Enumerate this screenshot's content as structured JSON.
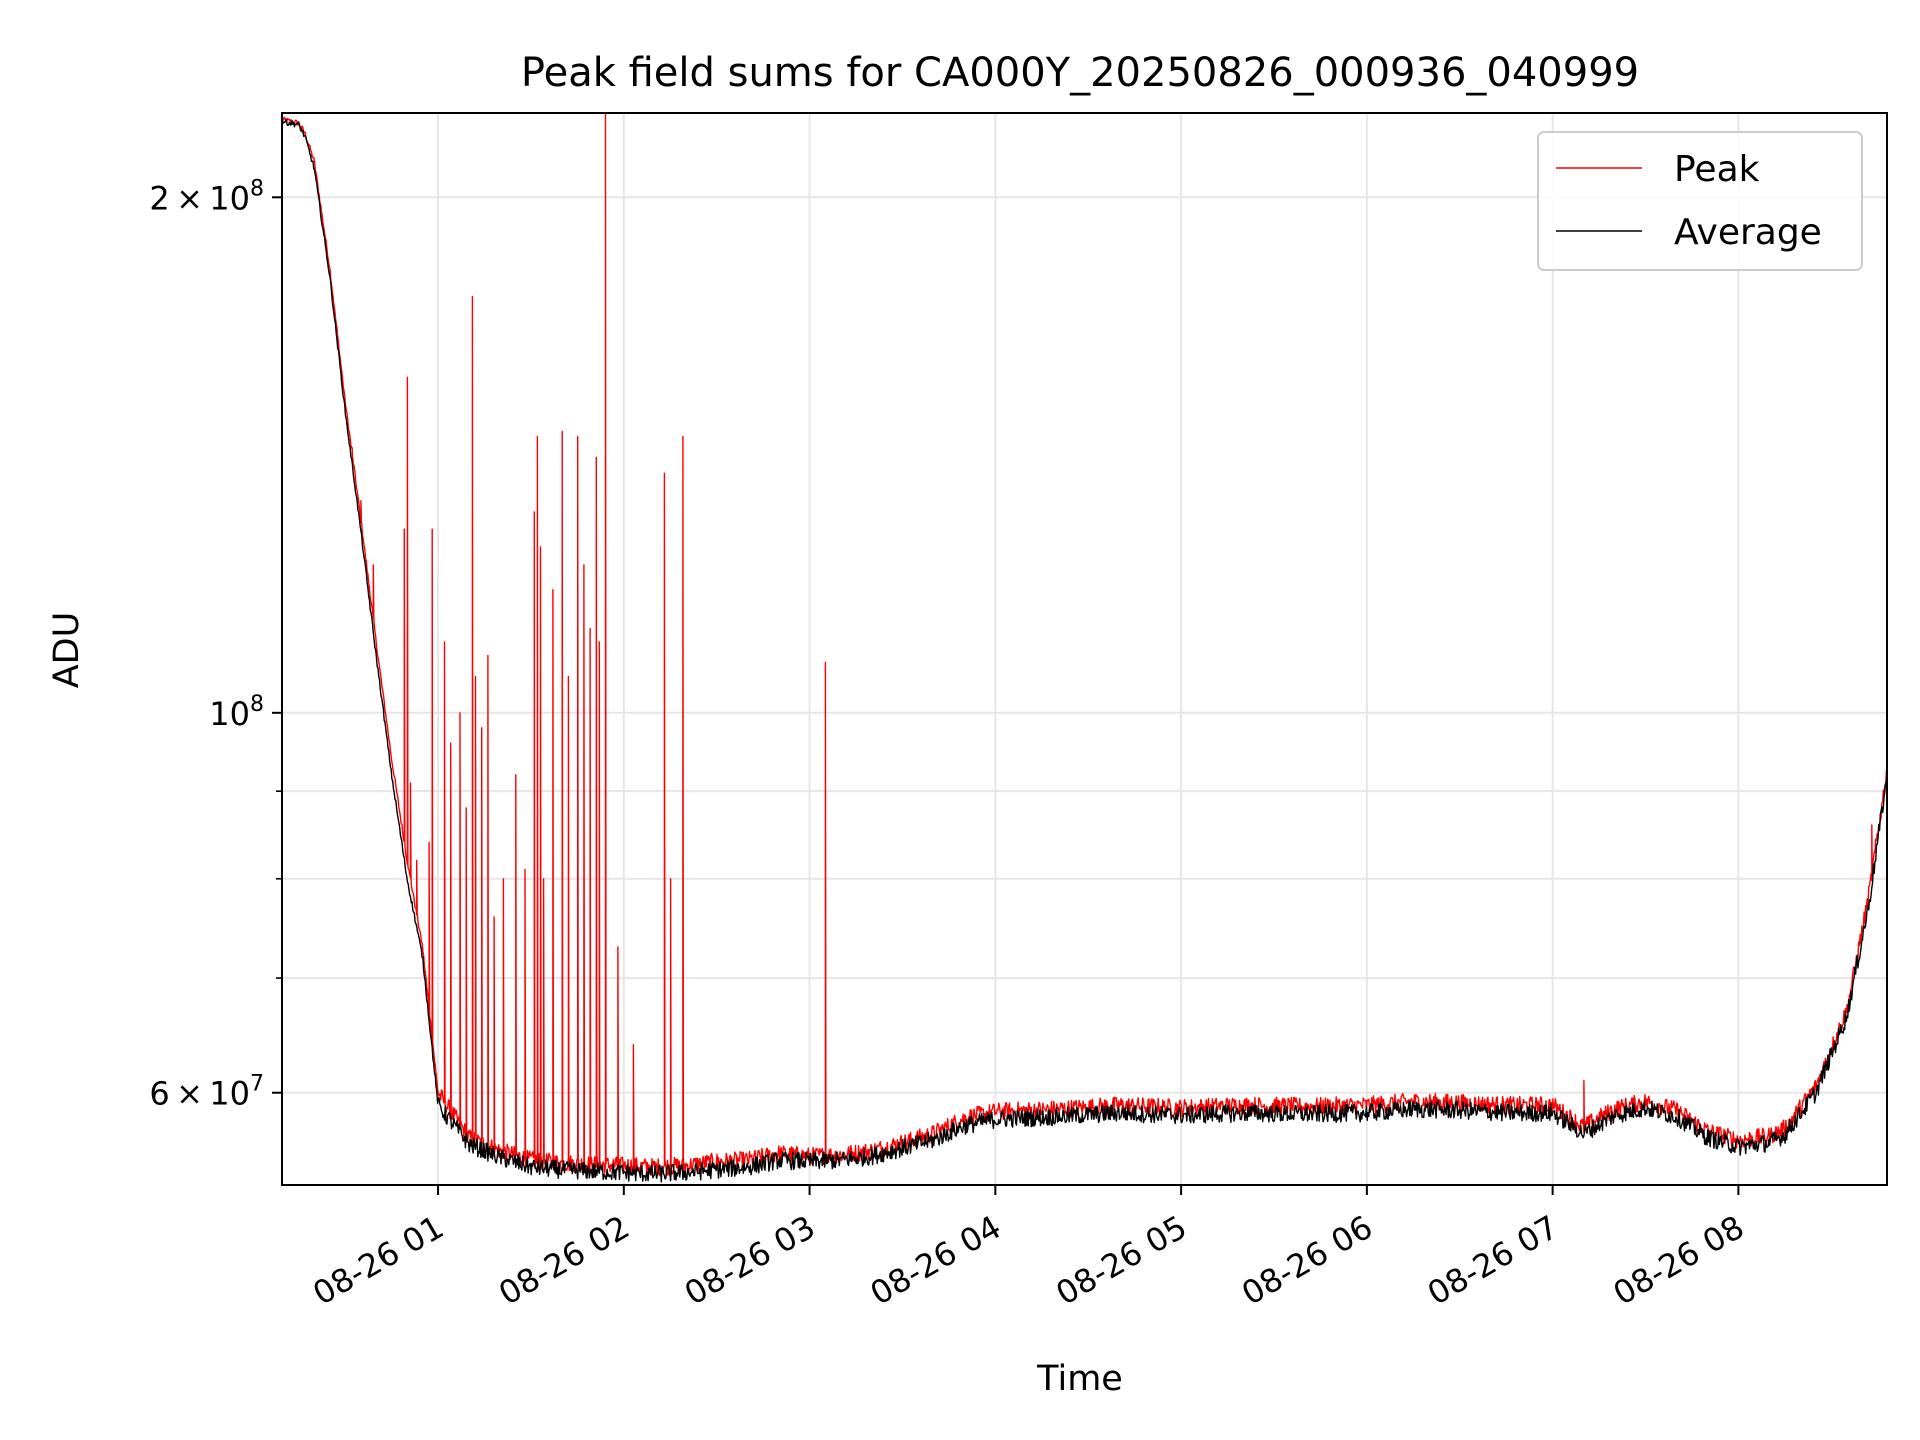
{
  "chart_data": {
    "type": "line",
    "title": "Peak field sums for CA000Y_20250826_000936_040999",
    "xlabel": "Time",
    "ylabel": "ADU",
    "x_range": [
      "2025-08-26 00:09:36",
      "2025-08-26 08:48:00"
    ],
    "ylim": [
      53000000,
      224000000
    ],
    "yscale": "log",
    "grid": true,
    "legend_position": "top-right",
    "x_ticks": [
      {
        "t": "2025-08-26 01:00",
        "label": "08-26 01"
      },
      {
        "t": "2025-08-26 02:00",
        "label": "08-26 02"
      },
      {
        "t": "2025-08-26 03:00",
        "label": "08-26 03"
      },
      {
        "t": "2025-08-26 04:00",
        "label": "08-26 04"
      },
      {
        "t": "2025-08-26 05:00",
        "label": "08-26 05"
      },
      {
        "t": "2025-08-26 06:00",
        "label": "08-26 06"
      },
      {
        "t": "2025-08-26 07:00",
        "label": "08-26 07"
      },
      {
        "t": "2025-08-26 08:00",
        "label": "08-26 08"
      }
    ],
    "y_ticks_major": [
      {
        "v": 60000000,
        "mant": "6",
        "exp": "7"
      },
      {
        "v": 100000000,
        "mant": "",
        "exp": "8"
      },
      {
        "v": 200000000,
        "mant": "2",
        "exp": "8"
      }
    ],
    "y_ticks_minor": [
      70000000,
      80000000,
      90000000
    ],
    "series": [
      {
        "name": "Peak",
        "color": "#ff0000",
        "points": [
          [
            "2025-08-26 00:09:36",
            222000000
          ],
          [
            "2025-08-26 00:15",
            221000000
          ],
          [
            "2025-08-26 00:17",
            218000000
          ],
          [
            "2025-08-26 00:20",
            210000000
          ],
          [
            "2025-08-26 00:25",
            182000000
          ],
          [
            "2025-08-26 00:30",
            152000000
          ],
          [
            "2025-08-26 00:35",
            130000000
          ],
          [
            "2025-08-26 00:40",
            110000000
          ],
          [
            "2025-08-26 00:45",
            94000000
          ],
          [
            "2025-08-26 00:50",
            82000000
          ],
          [
            "2025-08-26 00:55",
            73000000
          ],
          [
            "2025-08-26 01:00",
            60000000
          ],
          [
            "2025-08-26 01:10",
            56500000
          ],
          [
            "2025-08-26 01:20",
            55500000
          ],
          [
            "2025-08-26 01:30",
            54800000
          ],
          [
            "2025-08-26 01:40",
            54600000
          ],
          [
            "2025-08-26 01:50",
            54500000
          ],
          [
            "2025-08-26 02:00",
            54400000
          ],
          [
            "2025-08-26 02:10",
            54300000
          ],
          [
            "2025-08-26 02:20",
            54400000
          ],
          [
            "2025-08-26 02:30",
            54700000
          ],
          [
            "2025-08-26 02:40",
            54800000
          ],
          [
            "2025-08-26 02:50",
            55300000
          ],
          [
            "2025-08-26 03:00",
            55100000
          ],
          [
            "2025-08-26 03:10",
            55200000
          ],
          [
            "2025-08-26 03:20",
            55500000
          ],
          [
            "2025-08-26 03:30",
            56100000
          ],
          [
            "2025-08-26 03:40",
            56800000
          ],
          [
            "2025-08-26 03:50",
            58000000
          ],
          [
            "2025-08-26 04:00",
            58500000
          ],
          [
            "2025-08-26 04:20",
            58700000
          ],
          [
            "2025-08-26 04:40",
            59000000
          ],
          [
            "2025-08-26 05:00",
            58800000
          ],
          [
            "2025-08-26 05:20",
            59000000
          ],
          [
            "2025-08-26 05:40",
            58900000
          ],
          [
            "2025-08-26 06:00",
            59000000
          ],
          [
            "2025-08-26 06:15",
            59300000
          ],
          [
            "2025-08-26 06:30",
            59200000
          ],
          [
            "2025-08-26 06:45",
            59000000
          ],
          [
            "2025-08-26 07:00",
            59000000
          ],
          [
            "2025-08-26 07:10",
            57300000
          ],
          [
            "2025-08-26 07:20",
            58700000
          ],
          [
            "2025-08-26 07:30",
            59300000
          ],
          [
            "2025-08-26 07:40",
            58600000
          ],
          [
            "2025-08-26 07:50",
            57000000
          ],
          [
            "2025-08-26 08:00",
            56300000
          ],
          [
            "2025-08-26 08:10",
            56600000
          ],
          [
            "2025-08-26 08:15",
            57200000
          ],
          [
            "2025-08-26 08:25",
            60500000
          ],
          [
            "2025-08-26 08:35",
            67000000
          ],
          [
            "2025-08-26 08:42",
            78000000
          ],
          [
            "2025-08-26 08:48",
            92500000
          ]
        ],
        "spikes": [
          [
            "2025-08-26 00:32",
            143000000
          ],
          [
            "2025-08-26 00:35",
            133000000
          ],
          [
            "2025-08-26 00:39",
            122000000
          ],
          [
            "2025-08-26 00:49",
            128000000
          ],
          [
            "2025-08-26 00:50",
            157000000
          ],
          [
            "2025-08-26 00:51",
            91000000
          ],
          [
            "2025-08-26 00:53",
            82000000
          ],
          [
            "2025-08-26 00:57",
            84000000
          ],
          [
            "2025-08-26 00:58",
            128000000
          ],
          [
            "2025-08-26 01:02",
            110000000
          ],
          [
            "2025-08-26 01:04",
            96000000
          ],
          [
            "2025-08-26 01:07",
            100000000
          ],
          [
            "2025-08-26 01:09",
            88000000
          ],
          [
            "2025-08-26 01:11",
            175000000
          ],
          [
            "2025-08-26 01:12",
            105000000
          ],
          [
            "2025-08-26 01:14",
            98000000
          ],
          [
            "2025-08-26 01:16",
            108000000
          ],
          [
            "2025-08-26 01:18",
            76000000
          ],
          [
            "2025-08-26 01:21",
            80000000
          ],
          [
            "2025-08-26 01:25",
            92000000
          ],
          [
            "2025-08-26 01:28",
            81000000
          ],
          [
            "2025-08-26 01:31",
            131000000
          ],
          [
            "2025-08-26 01:32",
            145000000
          ],
          [
            "2025-08-26 01:33",
            125000000
          ],
          [
            "2025-08-26 01:34",
            80000000
          ],
          [
            "2025-08-26 01:37",
            118000000
          ],
          [
            "2025-08-26 01:40",
            146000000
          ],
          [
            "2025-08-26 01:42",
            105000000
          ],
          [
            "2025-08-26 01:45",
            145000000
          ],
          [
            "2025-08-26 01:47",
            122000000
          ],
          [
            "2025-08-26 01:49",
            112000000
          ],
          [
            "2025-08-26 01:51",
            141000000
          ],
          [
            "2025-08-26 01:52",
            110000000
          ],
          [
            "2025-08-26 01:54",
            224000000
          ],
          [
            "2025-08-26 01:58",
            73000000
          ],
          [
            "2025-08-26 02:03",
            64000000
          ],
          [
            "2025-08-26 02:13",
            138000000
          ],
          [
            "2025-08-26 02:15",
            80000000
          ],
          [
            "2025-08-26 02:19",
            145000000
          ],
          [
            "2025-08-26 03:05",
            107000000
          ],
          [
            "2025-08-26 07:10",
            61000000
          ],
          [
            "2025-08-26 08:43",
            86000000
          ]
        ]
      },
      {
        "name": "Average",
        "color": "#000000",
        "points": [
          [
            "2025-08-26 00:09:36",
            221500000
          ],
          [
            "2025-08-26 00:15",
            220500000
          ],
          [
            "2025-08-26 00:17",
            217000000
          ],
          [
            "2025-08-26 00:20",
            208000000
          ],
          [
            "2025-08-26 00:25",
            180000000
          ],
          [
            "2025-08-26 00:30",
            150000000
          ],
          [
            "2025-08-26 00:35",
            128000000
          ],
          [
            "2025-08-26 00:40",
            108000000
          ],
          [
            "2025-08-26 00:45",
            92000000
          ],
          [
            "2025-08-26 00:50",
            80000000
          ],
          [
            "2025-08-26 00:55",
            72000000
          ],
          [
            "2025-08-26 01:00",
            59000000
          ],
          [
            "2025-08-26 01:10",
            56000000
          ],
          [
            "2025-08-26 01:20",
            55000000
          ],
          [
            "2025-08-26 01:30",
            54300000
          ],
          [
            "2025-08-26 01:40",
            54100000
          ],
          [
            "2025-08-26 01:50",
            54000000
          ],
          [
            "2025-08-26 02:00",
            53900000
          ],
          [
            "2025-08-26 02:10",
            53800000
          ],
          [
            "2025-08-26 02:20",
            53900000
          ],
          [
            "2025-08-26 02:30",
            54100000
          ],
          [
            "2025-08-26 02:40",
            54300000
          ],
          [
            "2025-08-26 02:50",
            54800000
          ],
          [
            "2025-08-26 03:00",
            54700000
          ],
          [
            "2025-08-26 03:10",
            54800000
          ],
          [
            "2025-08-26 03:20",
            55100000
          ],
          [
            "2025-08-26 03:30",
            55700000
          ],
          [
            "2025-08-26 03:40",
            56300000
          ],
          [
            "2025-08-26 03:50",
            57400000
          ],
          [
            "2025-08-26 04:00",
            57900000
          ],
          [
            "2025-08-26 04:20",
            58100000
          ],
          [
            "2025-08-26 04:40",
            58400000
          ],
          [
            "2025-08-26 05:00",
            58200000
          ],
          [
            "2025-08-26 05:20",
            58400000
          ],
          [
            "2025-08-26 05:40",
            58300000
          ],
          [
            "2025-08-26 06:00",
            58400000
          ],
          [
            "2025-08-26 06:15",
            58700000
          ],
          [
            "2025-08-26 06:30",
            58600000
          ],
          [
            "2025-08-26 06:45",
            58400000
          ],
          [
            "2025-08-26 07:00",
            58400000
          ],
          [
            "2025-08-26 07:10",
            56800000
          ],
          [
            "2025-08-26 07:20",
            58200000
          ],
          [
            "2025-08-26 07:30",
            58800000
          ],
          [
            "2025-08-26 07:40",
            58100000
          ],
          [
            "2025-08-26 07:50",
            56500000
          ],
          [
            "2025-08-26 08:00",
            55800000
          ],
          [
            "2025-08-26 08:10",
            56100000
          ],
          [
            "2025-08-26 08:15",
            56700000
          ],
          [
            "2025-08-26 08:25",
            60000000
          ],
          [
            "2025-08-26 08:35",
            66500000
          ],
          [
            "2025-08-26 08:42",
            77000000
          ],
          [
            "2025-08-26 08:48",
            92000000
          ]
        ]
      }
    ]
  }
}
